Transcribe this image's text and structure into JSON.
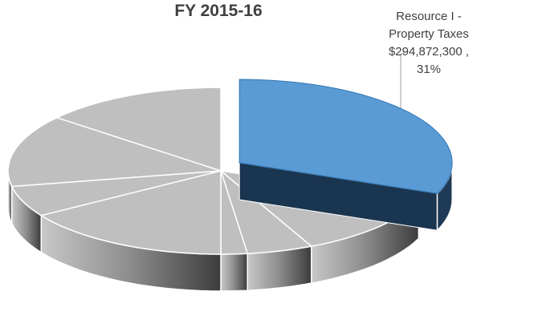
{
  "chart_data": {
    "type": "pie",
    "title": "FY 2015-16",
    "categories": [
      "Resource I - Property Taxes",
      null,
      null,
      null,
      null,
      null,
      null,
      null
    ],
    "values": [
      31,
      12,
      5,
      2,
      16,
      6,
      14,
      14
    ],
    "value_labels": [
      "$294,872,300 , 31%",
      null,
      null,
      null,
      null,
      null,
      null,
      null
    ],
    "colors": [
      "#5b9bd5",
      "#bfbfbf",
      "#bfbfbf",
      "#bfbfbf",
      "#bfbfbf",
      "#bfbfbf",
      "#bfbfbf",
      "#bfbfbf"
    ],
    "exploded": [
      true,
      false,
      false,
      false,
      false,
      false,
      false,
      false
    ]
  }
}
